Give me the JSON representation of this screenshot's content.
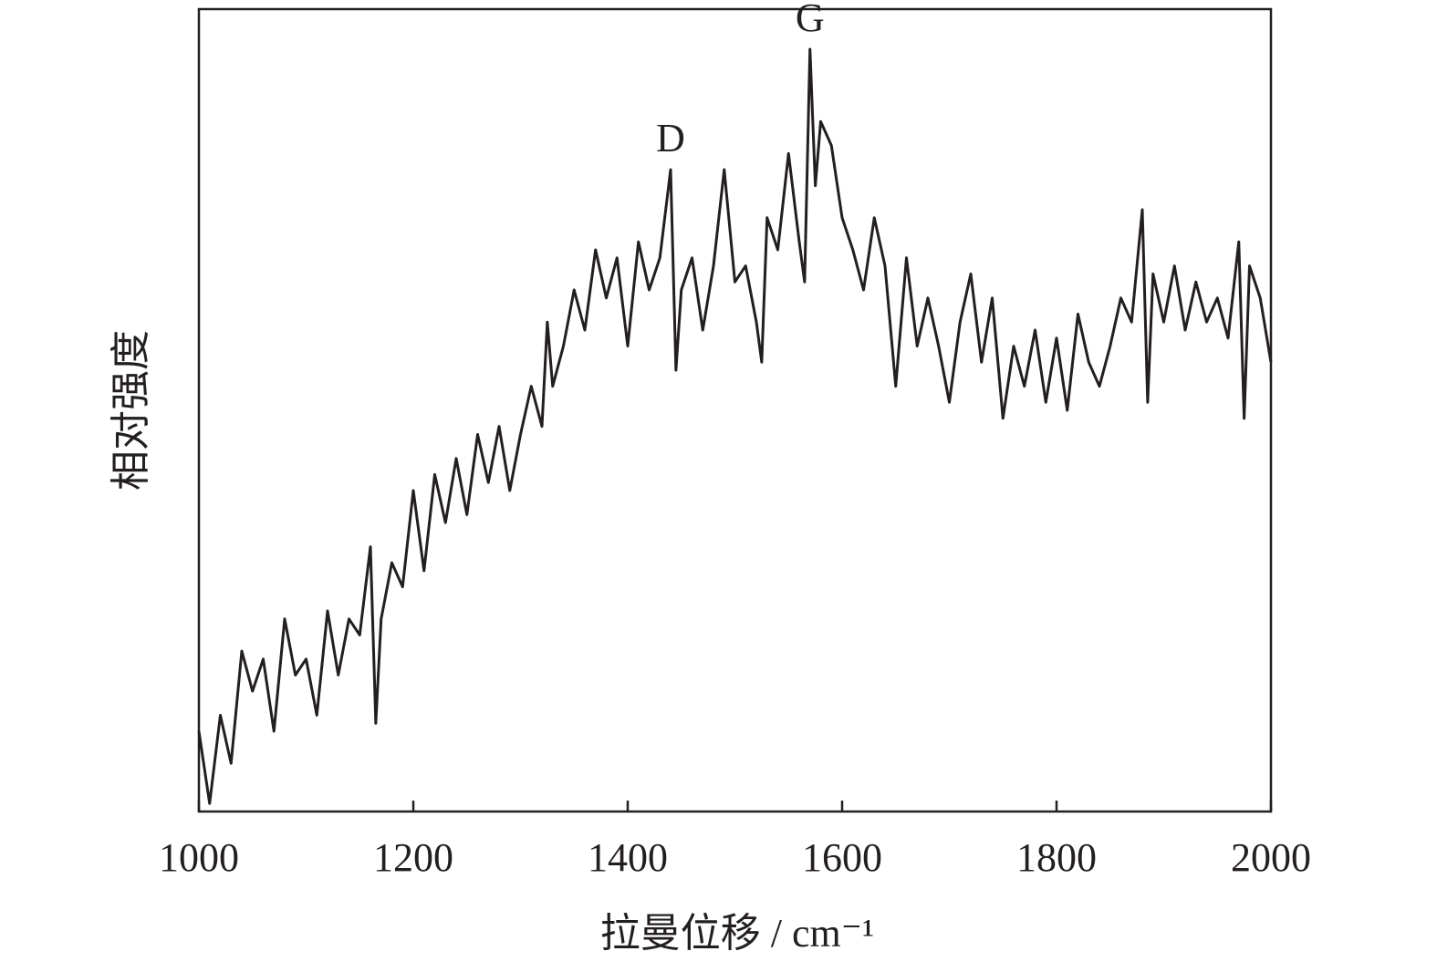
{
  "chart_data": {
    "type": "line",
    "xlabel": "拉曼位移 / cm⁻¹",
    "ylabel": "相对强度",
    "x": [
      1000,
      1010,
      1020,
      1030,
      1040,
      1050,
      1060,
      1070,
      1080,
      1090,
      1100,
      1110,
      1120,
      1130,
      1140,
      1150,
      1160,
      1165,
      1170,
      1180,
      1190,
      1200,
      1210,
      1220,
      1230,
      1240,
      1250,
      1260,
      1270,
      1280,
      1290,
      1300,
      1310,
      1320,
      1325,
      1330,
      1340,
      1350,
      1360,
      1370,
      1380,
      1390,
      1400,
      1410,
      1420,
      1430,
      1440,
      1445,
      1450,
      1460,
      1470,
      1480,
      1490,
      1500,
      1510,
      1520,
      1525,
      1530,
      1540,
      1550,
      1560,
      1565,
      1570,
      1575,
      1580,
      1590,
      1600,
      1610,
      1620,
      1630,
      1640,
      1650,
      1660,
      1670,
      1680,
      1690,
      1700,
      1710,
      1720,
      1730,
      1740,
      1750,
      1760,
      1770,
      1780,
      1790,
      1800,
      1810,
      1820,
      1830,
      1840,
      1850,
      1860,
      1870,
      1880,
      1885,
      1890,
      1900,
      1910,
      1920,
      1930,
      1940,
      1950,
      1960,
      1970,
      1975,
      1980,
      1990,
      2000
    ],
    "series": [
      {
        "color": "#231f20",
        "values": [
          10,
          1,
          12,
          6,
          20,
          15,
          19,
          10,
          24,
          17,
          19,
          12,
          25,
          17,
          24,
          22,
          33,
          11,
          24,
          31,
          28,
          40,
          30,
          42,
          36,
          44,
          37,
          47,
          41,
          48,
          40,
          47,
          53,
          48,
          61,
          53,
          58,
          65,
          60,
          70,
          64,
          69,
          58,
          71,
          65,
          69,
          80,
          55,
          65,
          69,
          60,
          68,
          80,
          66,
          68,
          61,
          56,
          74,
          70,
          82,
          71,
          66,
          95,
          78,
          86,
          83,
          74,
          70,
          65,
          74,
          68,
          53,
          69,
          58,
          64,
          58,
          51,
          61,
          67,
          56,
          64,
          49,
          58,
          53,
          60,
          51,
          59,
          50,
          62,
          56,
          53,
          58,
          64,
          61,
          75,
          51,
          67,
          61,
          68,
          60,
          66,
          61,
          64,
          59,
          71,
          49,
          68,
          64,
          56
        ]
      }
    ],
    "xlim": [
      1000,
      2000
    ],
    "xticks": [
      1000,
      1200,
      1400,
      1600,
      1800,
      2000
    ],
    "ylim": [
      0,
      100
    ],
    "annotations": [
      {
        "text": "D",
        "x": 1440
      },
      {
        "text": "G",
        "x": 1570
      }
    ]
  }
}
